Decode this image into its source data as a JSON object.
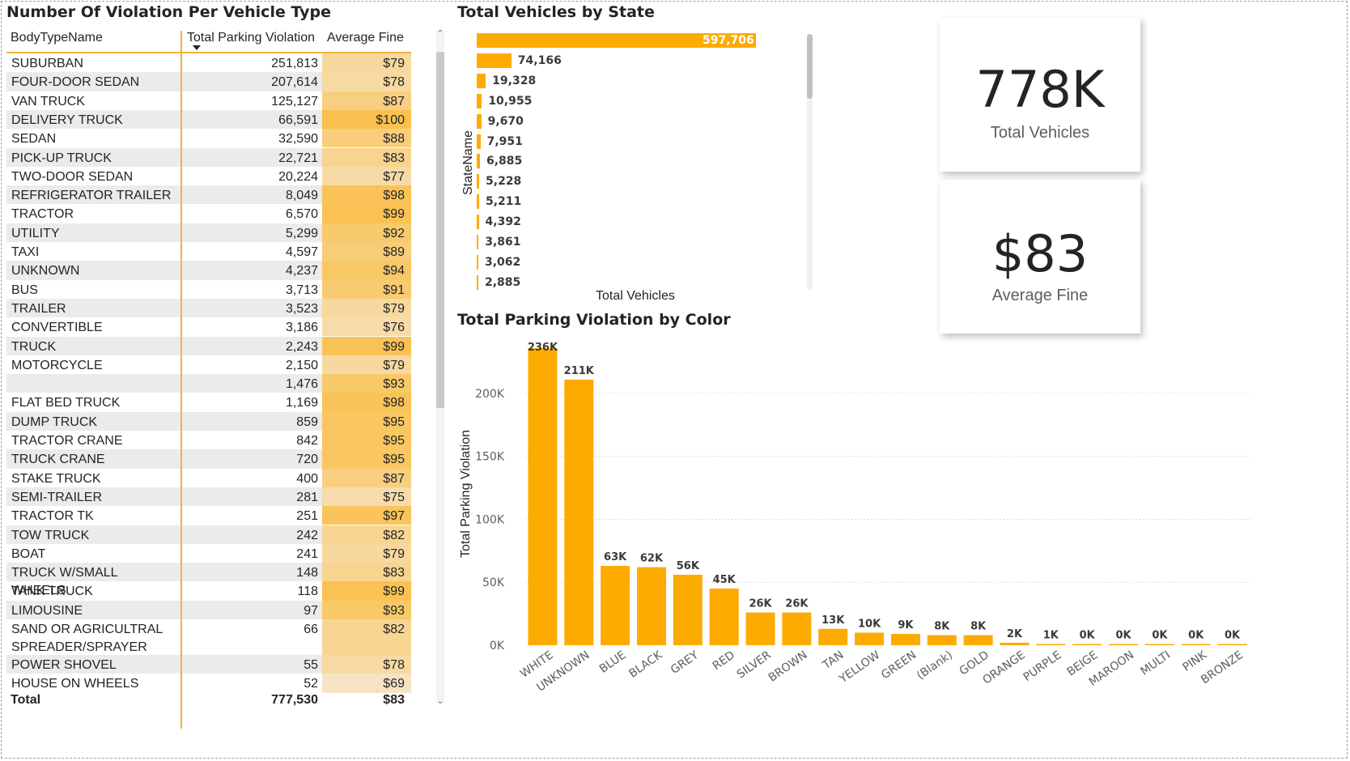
{
  "colors": {
    "bar": "#fdab00",
    "accent_line": "#f2b33a",
    "alt_row": "#ebebeb",
    "title": "#252423",
    "fine_min": "#f6e3c4",
    "fine_max": "#f9c14f"
  },
  "table": {
    "title": "Number Of Violation Per Vehicle Type",
    "headers": [
      "BodyTypeName",
      "Total Parking Violation",
      "Average Fine"
    ],
    "rows": [
      {
        "name": "SUBURBAN",
        "violations": "251,813",
        "fine": "$79"
      },
      {
        "name": "FOUR-DOOR SEDAN",
        "violations": "207,614",
        "fine": "$78"
      },
      {
        "name": "VAN TRUCK",
        "violations": "125,127",
        "fine": "$87"
      },
      {
        "name": "DELIVERY TRUCK",
        "violations": "66,591",
        "fine": "$100"
      },
      {
        "name": "SEDAN",
        "violations": "32,590",
        "fine": "$88"
      },
      {
        "name": "PICK-UP TRUCK",
        "violations": "22,721",
        "fine": "$83"
      },
      {
        "name": "TWO-DOOR SEDAN",
        "violations": "20,224",
        "fine": "$77"
      },
      {
        "name": "REFRIGERATOR TRAILER",
        "violations": "8,049",
        "fine": "$98"
      },
      {
        "name": "TRACTOR",
        "violations": "6,570",
        "fine": "$99"
      },
      {
        "name": "UTILITY",
        "violations": "5,299",
        "fine": "$92"
      },
      {
        "name": "TAXI",
        "violations": "4,597",
        "fine": "$89"
      },
      {
        "name": "UNKNOWN",
        "violations": "4,237",
        "fine": "$94"
      },
      {
        "name": "BUS",
        "violations": "3,713",
        "fine": "$91"
      },
      {
        "name": "TRAILER",
        "violations": "3,523",
        "fine": "$79"
      },
      {
        "name": "CONVERTIBLE",
        "violations": "3,186",
        "fine": "$76"
      },
      {
        "name": "TRUCK",
        "violations": "2,243",
        "fine": "$99"
      },
      {
        "name": "MOTORCYCLE",
        "violations": "2,150",
        "fine": "$79"
      },
      {
        "name": "",
        "violations": "1,476",
        "fine": "$93"
      },
      {
        "name": "FLAT BED TRUCK",
        "violations": "1,169",
        "fine": "$98"
      },
      {
        "name": "DUMP TRUCK",
        "violations": "859",
        "fine": "$95"
      },
      {
        "name": "TRACTOR CRANE",
        "violations": "842",
        "fine": "$95"
      },
      {
        "name": "TRUCK CRANE",
        "violations": "720",
        "fine": "$95"
      },
      {
        "name": "STAKE TRUCK",
        "violations": "400",
        "fine": "$87"
      },
      {
        "name": "SEMI-TRAILER",
        "violations": "281",
        "fine": "$75"
      },
      {
        "name": "TRACTOR TK",
        "violations": "251",
        "fine": "$97"
      },
      {
        "name": "TOW TRUCK",
        "violations": "242",
        "fine": "$82"
      },
      {
        "name": "BOAT",
        "violations": "241",
        "fine": "$79"
      },
      {
        "name": "TRUCK W/SMALL WHEELS",
        "violations": "148",
        "fine": "$83"
      },
      {
        "name": "TANK TRUCK",
        "violations": "118",
        "fine": "$99"
      },
      {
        "name": "LIMOUSINE",
        "violations": "97",
        "fine": "$93"
      },
      {
        "name": "SAND OR AGRICULTRAL SPREADER/SPRAYER",
        "violations": "66",
        "fine": "$82"
      },
      {
        "name": "POWER SHOVEL",
        "violations": "55",
        "fine": "$78"
      },
      {
        "name": "HOUSE ON WHEELS",
        "violations": "52",
        "fine": "$69"
      }
    ],
    "total": {
      "label": "Total",
      "violations": "777,530",
      "fine": "$83"
    }
  },
  "state_chart": {
    "title": "Total Vehicles by State",
    "xlabel": "Total Vehicles",
    "ylabel": "StateName"
  },
  "color_chart": {
    "title": "Total Parking Violation by Color",
    "ylabel": "Total Parking Violation"
  },
  "cards": [
    {
      "value": "778K",
      "label": "Total Vehicles"
    },
    {
      "value": "$83",
      "label": "Average Fine"
    }
  ],
  "chart_data": [
    {
      "type": "bar",
      "orientation": "horizontal",
      "title": "Total Vehicles by State",
      "xlabel": "Total Vehicles",
      "ylabel": "StateName",
      "values": [
        597706,
        74166,
        19328,
        10955,
        9670,
        7951,
        6885,
        5228,
        5211,
        4392,
        3861,
        3062,
        2885
      ],
      "value_labels": [
        "597,706",
        "74,166",
        "19,328",
        "10,955",
        "9,670",
        "7,951",
        "6,885",
        "5,228",
        "5,211",
        "4,392",
        "3,861",
        "3,062",
        "2,885"
      ],
      "xlim": [
        0,
        597706
      ]
    },
    {
      "type": "bar",
      "title": "Total Parking Violation by Color",
      "xlabel": "",
      "ylabel": "Total Parking Violation",
      "categories": [
        "WHITE",
        "UNKNOWN",
        "BLUE",
        "BLACK",
        "GREY",
        "RED",
        "SILVER",
        "BROWN",
        "TAN",
        "YELLOW",
        "GREEN",
        "(Blank)",
        "GOLD",
        "ORANGE",
        "PURPLE",
        "BEIGE",
        "MAROON",
        "MULTI",
        "PINK",
        "BRONZE"
      ],
      "values": [
        236000,
        211000,
        63000,
        62000,
        56000,
        45000,
        26000,
        26000,
        13000,
        10000,
        9000,
        8000,
        8000,
        2000,
        1000,
        400,
        300,
        200,
        150,
        100
      ],
      "value_labels": [
        "236K",
        "211K",
        "63K",
        "62K",
        "56K",
        "45K",
        "26K",
        "26K",
        "13K",
        "10K",
        "9K",
        "8K",
        "8K",
        "2K",
        "1K",
        "0K",
        "0K",
        "0K",
        "0K",
        "0K"
      ],
      "ylim": [
        0,
        236000
      ],
      "yticks": [
        0,
        50000,
        100000,
        150000,
        200000
      ],
      "ytick_labels": [
        "0K",
        "50K",
        "100K",
        "150K",
        "200K"
      ],
      "grid": true
    }
  ]
}
